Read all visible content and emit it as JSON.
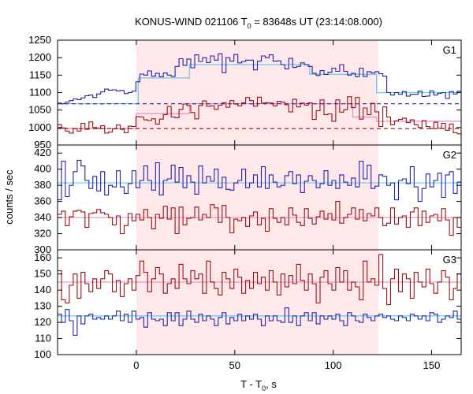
{
  "chart_data": {
    "type": "line",
    "title": "KONUS-WIND 021106 T",
    "title_sub": "0",
    "title_tail": " = 83648s UT (23:14:08.000)",
    "xlabel": "T - T",
    "xlabel_sub": "0",
    "xlabel_tail": ", s",
    "ylabel": "counts / sec",
    "xlim": [
      -40,
      165
    ],
    "xticks": [
      0,
      50,
      100,
      150
    ],
    "highlight": {
      "x0": 0,
      "x1": 123,
      "color": "#ffe8ea"
    },
    "colors": {
      "high": "#2222aa",
      "low": "#991111",
      "bg_high": "#66ccee",
      "bg_low": "#ee88cc"
    },
    "panels": [
      {
        "name": "G1",
        "ylim": [
          950,
          1250
        ],
        "yticks": [
          950,
          1000,
          1050,
          1100,
          1150,
          1200,
          1250
        ],
        "bg_high": 1068,
        "bg_low": 997,
        "fit_high": [
          [
            -40,
            1068
          ],
          [
            1,
            1068
          ],
          [
            1,
            1142
          ],
          [
            27,
            1142
          ],
          [
            27,
            1180
          ],
          [
            88,
            1180
          ],
          [
            88,
            1152
          ],
          [
            122,
            1152
          ],
          [
            122,
            1100
          ],
          [
            165,
            1100
          ]
        ],
        "fit_low": [
          [
            -40,
            997
          ],
          [
            0,
            997
          ],
          [
            0,
            1040
          ],
          [
            27,
            1040
          ],
          [
            27,
            1068
          ],
          [
            110,
            1068
          ],
          [
            110,
            1030
          ],
          [
            122,
            1030
          ],
          [
            122,
            1018
          ],
          [
            165,
            1018
          ]
        ],
        "series": [
          {
            "values": [
              1070,
              1068,
              1073,
              1077,
              1082,
              1080,
              1085,
              1091,
              1093,
              1086,
              1096,
              1102,
              1110,
              1107,
              1108,
              1105,
              1106,
              1097,
              1100,
              1104,
              1131,
              1153,
              1150,
              1162,
              1147,
              1155,
              1145,
              1156,
              1150,
              1146,
              1175,
              1197,
              1178,
              1196,
              1171,
              1208,
              1189,
              1200,
              1186,
              1205,
              1193,
              1211,
              1157,
              1200,
              1190,
              1209,
              1185,
              1189,
              1193,
              1193,
              1165,
              1190,
              1205,
              1200,
              1208,
              1190,
              1191,
              1180,
              1168,
              1198,
              1172,
              1175,
              1185,
              1180,
              1175,
              1155,
              1149,
              1163,
              1152,
              1158,
              1170,
              1161,
              1180,
              1161,
              1150,
              1155,
              1145,
              1170,
              1146,
              1160,
              1156,
              1160,
              1154,
              1147,
              1100,
              1093,
              1100,
              1095,
              1103,
              1090,
              1095,
              1095,
              1104,
              1089,
              1090,
              1105,
              1093,
              1098,
              1100,
              1083,
              1103,
              1096,
              1104
            ]
          },
          {
            "values": [
              1008,
              999,
              990,
              984,
              997,
              990,
              1012,
              995,
              1016,
              1000,
              998,
              1005,
              984,
              987,
              996,
              1007,
              995,
              985,
              1004,
              1003,
              1031,
              1030,
              1022,
              1020,
              1025,
              1010,
              1024,
              1037,
              1060,
              1030,
              1028,
              1052,
              1067,
              1063,
              1043,
              1025,
              1063,
              1076,
              1061,
              1062,
              1052,
              1064,
              1071,
              1058,
              1077,
              1067,
              1062,
              1071,
              1086,
              1077,
              1061,
              1087,
              1070,
              1071,
              1070,
              1062,
              1075,
              1073,
              1065,
              1045,
              1081,
              1059,
              1070,
              1064,
              1071,
              1023,
              1048,
              1079,
              1037,
              1039,
              1018,
              1079,
              1044,
              1051,
              1088,
              1057,
              1086,
              1024,
              1056,
              1037,
              1069,
              1045,
              1003,
              1059,
              1030,
              1008,
              1019,
              1023,
              1027,
              1014,
              1022,
              1008,
              1000,
              1020,
              1003,
              997,
              1015,
              998,
              1012,
              992,
              1010,
              985,
              982
            ]
          }
        ]
      },
      {
        "name": "G2",
        "ylim": [
          300,
          430
        ],
        "yticks": [
          300,
          320,
          340,
          360,
          380,
          400,
          420
        ],
        "bg_high": 383,
        "bg_low": 340,
        "series": [
          {
            "values": [
              362,
              410,
              366,
              380,
              397,
              411,
              404,
              386,
              376,
              391,
              373,
              397,
              368,
              380,
              378,
              398,
              378,
              370,
              382,
              398,
              377,
              386,
              404,
              386,
              374,
              408,
              368,
              386,
              388,
              405,
              384,
              402,
              377,
              392,
              384,
              369,
              404,
              383,
              391,
              385,
              400,
              377,
              390,
              375,
              374,
              383,
              386,
              400,
              377,
              383,
              393,
              378,
              403,
              376,
              393,
              384,
              378,
              380,
              392,
              397,
              382,
              393,
              371,
              385,
              392,
              386,
              377,
              382,
              398,
              380,
              386,
              376,
              393,
              384,
              380,
              389,
              378,
              410,
              388,
              405,
              376,
              379,
              393,
              391,
              380,
              383,
              362,
              386,
              388,
              382,
              403,
              378,
              360,
              376,
              394,
              378,
              386,
              395,
              365,
              393,
              397,
              370,
              384
            ]
          },
          {
            "values": [
              344,
              348,
              330,
              341,
              348,
              349,
              347,
              328,
              345,
              346,
              350,
              346,
              344,
              340,
              331,
              342,
              320,
              330,
              345,
              336,
              344,
              337,
              350,
              340,
              326,
              344,
              339,
              354,
              338,
              352,
              320,
              353,
              331,
              339,
              340,
              353,
              337,
              344,
              340,
              356,
              352,
              334,
              355,
              340,
              321,
              338,
              336,
              340,
              329,
              342,
              347,
              331,
              339,
              323,
              351,
              339,
              334,
              340,
              331,
              352,
              343,
              334,
              330,
              351,
              339,
              332,
              341,
              348,
              338,
              345,
              337,
              360,
              333,
              340,
              344,
              352,
              338,
              350,
              336,
              345,
              342,
              352,
              340,
              330,
              333,
              352,
              332,
              340,
              342,
              328,
              347,
              352,
              330,
              348,
              334,
              342,
              344,
              336,
              351,
              337,
              318,
              340,
              328
            ]
          }
        ]
      },
      {
        "name": "G3",
        "ylim": [
          100,
          165
        ],
        "yticks": [
          100,
          110,
          120,
          130,
          140,
          150,
          160
        ],
        "bg_high": 124,
        "bg_low": 145,
        "series": [
          {
            "values": [
              125,
              120,
              128,
              121,
              112,
              124,
              119,
              124,
              125,
              122,
              123,
              122,
              124,
              122,
              124,
              127,
              121,
              125,
              120,
              127,
              122,
              123,
              117,
              126,
              122,
              121,
              122,
              118,
              126,
              121,
              126,
              118,
              122,
              127,
              122,
              120,
              125,
              121,
              124,
              122,
              118,
              123,
              126,
              119,
              123,
              121,
              125,
              121,
              124,
              122,
              125,
              122,
              118,
              124,
              121,
              124,
              121,
              120,
              129,
              120,
              124,
              118,
              124,
              126,
              121,
              126,
              119,
              124,
              122,
              124,
              122,
              125,
              121,
              118,
              126,
              124,
              121,
              120,
              125,
              123,
              121,
              124,
              125,
              123,
              124,
              122,
              121,
              124,
              123,
              121,
              125,
              124,
              122,
              124,
              121,
              126,
              125,
              120,
              122,
              124,
              123,
              127,
              122
            ]
          },
          {
            "values": [
              152,
              134,
              132,
              143,
              150,
              135,
              151,
              144,
              139,
              147,
              141,
              147,
              152,
              150,
              139,
              146,
              136,
              144,
              147,
              140,
              149,
              158,
              151,
              139,
              147,
              154,
              150,
              138,
              144,
              147,
              141,
              156,
              147,
              144,
              152,
              147,
              150,
              138,
              158,
              145,
              141,
              137,
              151,
              147,
              141,
              153,
              148,
              138,
              146,
              141,
              151,
              144,
              148,
              140,
              152,
              145,
              137,
              150,
              142,
              149,
              144,
              156,
              146,
              140,
              150,
              144,
              132,
              148,
              152,
              144,
              140,
              154,
              145,
              152,
              140,
              145,
              142,
              134,
              158,
              145,
              147,
              143,
              162,
              141,
              131,
              147,
              153,
              139,
              150,
              147,
              135,
              151,
              145,
              142,
              153,
              144,
              138,
              145,
              152,
              148,
              134,
              141,
              150
            ]
          }
        ]
      }
    ]
  }
}
